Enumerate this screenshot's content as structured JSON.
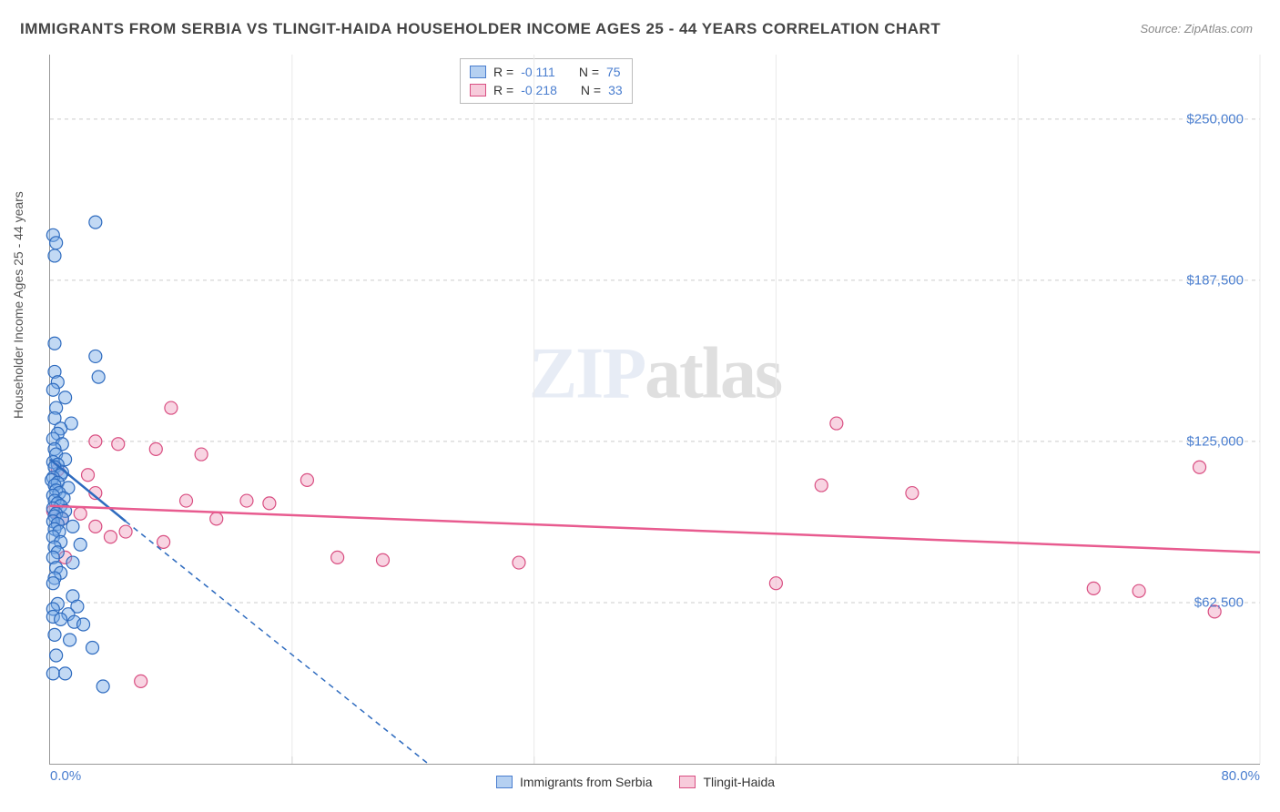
{
  "title": "IMMIGRANTS FROM SERBIA VS TLINGIT-HAIDA HOUSEHOLDER INCOME AGES 25 - 44 YEARS CORRELATION CHART",
  "source": "Source: ZipAtlas.com",
  "ylabel": "Householder Income Ages 25 - 44 years",
  "watermark_zip": "ZIP",
  "watermark_atlas": "atlas",
  "chart": {
    "type": "scatter",
    "xlim": [
      0,
      80
    ],
    "ylim": [
      0,
      275000
    ],
    "x_unit": "%",
    "y_unit": "$",
    "xtick_min_label": "0.0%",
    "xtick_max_label": "80.0%",
    "yticks": [
      62500,
      125000,
      187500,
      250000
    ],
    "ytick_labels": [
      "$62,500",
      "$125,000",
      "$187,500",
      "$250,000"
    ],
    "vgrid_x": [
      0,
      16,
      32,
      48,
      64,
      80
    ],
    "background_color": "#ffffff",
    "grid_color": "#cccccc",
    "axis_color": "#999999",
    "tick_label_color": "#4a7ecf",
    "marker_radius": 7,
    "marker_stroke_width": 1.2,
    "trend_line_width": 2.5,
    "trend_dash_width": 1.5
  },
  "series": {
    "blue": {
      "label": "Immigrants from Serbia",
      "swatch_fill": "rgba(120,170,230,0.55)",
      "swatch_stroke": "#4a7ecf",
      "marker_fill": "rgba(120,170,230,0.45)",
      "marker_stroke": "#2e6bbf",
      "trend_color": "#2e6bbf",
      "R": "-0.111",
      "N": "75",
      "trend_solid": {
        "x1": 0.0,
        "y1": 118000,
        "x2": 5.0,
        "y2": 94000
      },
      "trend_dash": {
        "x1": 5.0,
        "y1": 94000,
        "x2": 25.0,
        "y2": 0
      },
      "points": [
        [
          0.2,
          205000
        ],
        [
          0.4,
          202000
        ],
        [
          0.3,
          197000
        ],
        [
          3.0,
          210000
        ],
        [
          0.3,
          163000
        ],
        [
          3.0,
          158000
        ],
        [
          0.3,
          152000
        ],
        [
          3.2,
          150000
        ],
        [
          0.5,
          148000
        ],
        [
          0.2,
          145000
        ],
        [
          1.0,
          142000
        ],
        [
          0.4,
          138000
        ],
        [
          0.3,
          134000
        ],
        [
          1.4,
          132000
        ],
        [
          0.7,
          130000
        ],
        [
          0.5,
          128000
        ],
        [
          0.2,
          126000
        ],
        [
          0.8,
          124000
        ],
        [
          0.3,
          122000
        ],
        [
          0.4,
          120000
        ],
        [
          1.0,
          118000
        ],
        [
          0.2,
          117000
        ],
        [
          0.5,
          116000
        ],
        [
          0.3,
          115000
        ],
        [
          0.8,
          113000
        ],
        [
          0.7,
          112000
        ],
        [
          0.2,
          111000
        ],
        [
          0.1,
          110000
        ],
        [
          0.5,
          109000
        ],
        [
          0.3,
          108000
        ],
        [
          1.2,
          107000
        ],
        [
          0.4,
          106000
        ],
        [
          0.6,
          105000
        ],
        [
          0.2,
          104000
        ],
        [
          0.9,
          103000
        ],
        [
          0.3,
          102000
        ],
        [
          0.5,
          101000
        ],
        [
          0.7,
          100000
        ],
        [
          0.2,
          99000
        ],
        [
          1.0,
          98000
        ],
        [
          0.4,
          97000
        ],
        [
          0.3,
          96000
        ],
        [
          0.8,
          95000
        ],
        [
          0.2,
          94000
        ],
        [
          0.5,
          93000
        ],
        [
          1.5,
          92000
        ],
        [
          0.3,
          91000
        ],
        [
          0.6,
          90000
        ],
        [
          0.2,
          88000
        ],
        [
          0.7,
          86000
        ],
        [
          2.0,
          85000
        ],
        [
          0.3,
          84000
        ],
        [
          0.5,
          82000
        ],
        [
          0.2,
          80000
        ],
        [
          1.5,
          78000
        ],
        [
          0.4,
          76000
        ],
        [
          0.7,
          74000
        ],
        [
          0.3,
          72000
        ],
        [
          0.2,
          70000
        ],
        [
          1.5,
          65000
        ],
        [
          0.5,
          62000
        ],
        [
          1.8,
          61000
        ],
        [
          0.2,
          60000
        ],
        [
          1.2,
          58000
        ],
        [
          0.2,
          57000
        ],
        [
          0.7,
          56000
        ],
        [
          1.6,
          55000
        ],
        [
          2.2,
          54000
        ],
        [
          0.3,
          50000
        ],
        [
          1.3,
          48000
        ],
        [
          2.8,
          45000
        ],
        [
          0.4,
          42000
        ],
        [
          0.2,
          35000
        ],
        [
          1.0,
          35000
        ],
        [
          3.5,
          30000
        ]
      ]
    },
    "pink": {
      "label": "Tlingit-Haida",
      "swatch_fill": "rgba(240,160,190,0.55)",
      "swatch_stroke": "#d94f82",
      "marker_fill": "rgba(240,160,190,0.45)",
      "marker_stroke": "#d94f82",
      "trend_color": "#e85b8f",
      "R": "-0.218",
      "N": "33",
      "trend_solid": {
        "x1": 0.0,
        "y1": 100000,
        "x2": 80.0,
        "y2": 82000
      },
      "points": [
        [
          8.0,
          138000
        ],
        [
          52.0,
          132000
        ],
        [
          3.0,
          125000
        ],
        [
          4.5,
          124000
        ],
        [
          7.0,
          122000
        ],
        [
          10.0,
          120000
        ],
        [
          76.0,
          115000
        ],
        [
          0.5,
          114000
        ],
        [
          2.5,
          112000
        ],
        [
          17.0,
          110000
        ],
        [
          51.0,
          108000
        ],
        [
          57.0,
          105000
        ],
        [
          3.0,
          105000
        ],
        [
          9.0,
          102000
        ],
        [
          13.0,
          102000
        ],
        [
          14.5,
          101000
        ],
        [
          0.2,
          98000
        ],
        [
          2.0,
          97000
        ],
        [
          0.8,
          95000
        ],
        [
          11.0,
          95000
        ],
        [
          3.0,
          92000
        ],
        [
          5.0,
          90000
        ],
        [
          4.0,
          88000
        ],
        [
          7.5,
          86000
        ],
        [
          19.0,
          80000
        ],
        [
          22.0,
          79000
        ],
        [
          31.0,
          78000
        ],
        [
          69.0,
          68000
        ],
        [
          72.0,
          67000
        ],
        [
          48.0,
          70000
        ],
        [
          77.0,
          59000
        ],
        [
          1.0,
          80000
        ],
        [
          6.0,
          32000
        ]
      ]
    }
  },
  "legend_top_labels": {
    "R": "R =",
    "N": "N ="
  },
  "bottom_legend_order": [
    "blue",
    "pink"
  ]
}
